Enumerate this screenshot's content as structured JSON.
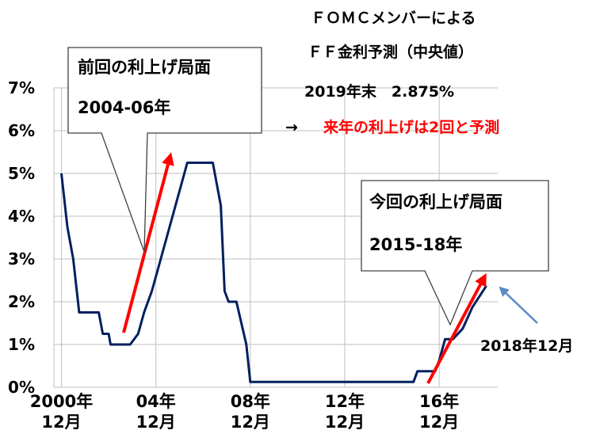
{
  "header": {
    "line1": "ＦＯＭＣメンバーによる",
    "line2": "ＦＦ金利予測（中央値）",
    "line3": "2019年末　2.875%",
    "arrow": "→",
    "line4": "来年の利上げは2回と予測"
  },
  "colors": {
    "policy_rate": "#002060",
    "trend_arrow": "#ff0000",
    "pointer_arrow": "#5b8ac6",
    "grid": "#bfbfbf"
  },
  "callouts": {
    "previous": {
      "line1": "前回の利上げ局面",
      "line2": "2004-06年"
    },
    "current": {
      "line1": "今回の利上げ局面",
      "line2": "2015-18年"
    }
  },
  "end_label": "2018年12月",
  "chart_data": {
    "type": "line",
    "title": "",
    "xlabel": "",
    "ylabel": "",
    "ylim": [
      0,
      7
    ],
    "y_ticks": [
      "0%",
      "1%",
      "2%",
      "3%",
      "4%",
      "5%",
      "6%",
      "7%"
    ],
    "x_ticks": [
      {
        "x": 2000.92,
        "line1": "2000年",
        "line2": "12月"
      },
      {
        "x": 2004.92,
        "line1": "04年",
        "line2": "12月"
      },
      {
        "x": 2008.92,
        "line1": "08年",
        "line2": "12月"
      },
      {
        "x": 2012.92,
        "line1": "12年",
        "line2": "12月"
      },
      {
        "x": 2016.92,
        "line1": "16年",
        "line2": "12月"
      }
    ],
    "xlim": [
      2000.6,
      2019.4
    ],
    "grid": "vertical and horizontal",
    "series": [
      {
        "x": [
          2000.92,
          2001.17,
          2001.42,
          2001.67,
          2002.5,
          2002.67,
          2002.92,
          2003.0,
          2003.5,
          2003.83,
          2004.17,
          2004.42,
          2004.75,
          2005.0,
          2005.5,
          2006.0,
          2006.25,
          2006.5,
          2007.0,
          2007.33,
          2007.67,
          2007.83,
          2008.0,
          2008.33,
          2008.75,
          2008.92,
          2009.5,
          2012.0,
          2015.0,
          2015.83,
          2016.0,
          2016.75,
          2016.92,
          2017.17,
          2017.5,
          2017.92,
          2018.33,
          2018.92
        ],
        "values": [
          5.0,
          3.75,
          3.0,
          1.75,
          1.75,
          1.25,
          1.25,
          1.0,
          1.0,
          1.0,
          1.25,
          1.75,
          2.25,
          2.75,
          3.75,
          4.75,
          5.25,
          5.25,
          5.25,
          5.25,
          4.25,
          2.25,
          2.0,
          2.0,
          1.0,
          0.125,
          0.125,
          0.125,
          0.125,
          0.125,
          0.375,
          0.375,
          0.625,
          1.125,
          1.125,
          1.375,
          1.875,
          2.375
        ]
      }
    ]
  }
}
